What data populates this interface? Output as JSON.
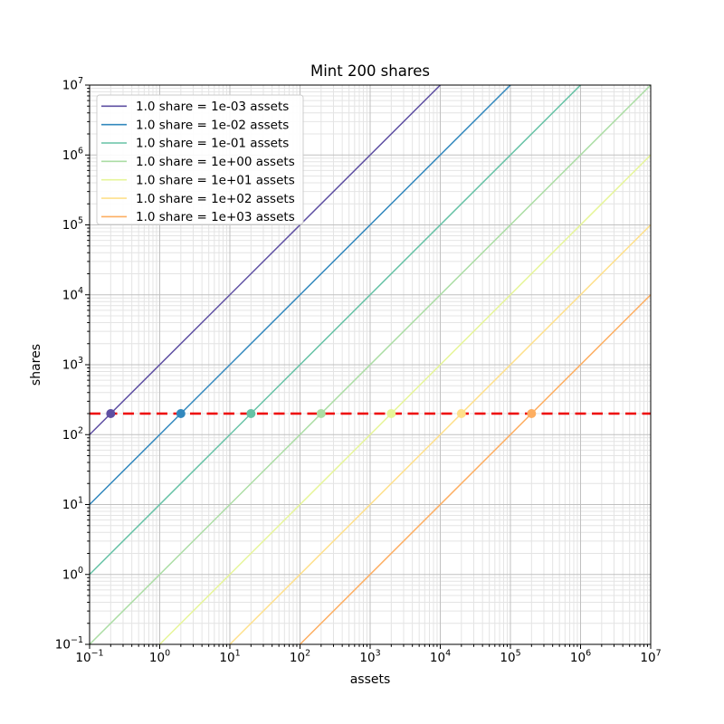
{
  "chart_data": {
    "type": "line",
    "title": "Mint 200 shares",
    "xlabel": "assets",
    "ylabel": "shares",
    "x_scale": "log",
    "y_scale": "log",
    "xlim": [
      0.1,
      10000000
    ],
    "ylim": [
      0.1,
      10000000
    ],
    "x_tick_exponents": [
      -1,
      0,
      1,
      2,
      3,
      4,
      5,
      6,
      7
    ],
    "y_tick_exponents": [
      -1,
      0,
      1,
      2,
      3,
      4,
      5,
      6,
      7
    ],
    "grid": {
      "show_major": true,
      "show_minor": true,
      "major_color": "#c0c0c0",
      "minor_color": "#e4e4e4"
    },
    "series": [
      {
        "label": "1.0 share = 1e-03 assets",
        "color": "#5e4fa2",
        "assets_per_share": 0.001,
        "marker": {
          "x": 0.2,
          "y": 200
        }
      },
      {
        "label": "1.0 share = 1e-02 assets",
        "color": "#3288bd",
        "assets_per_share": 0.01,
        "marker": {
          "x": 2,
          "y": 200
        }
      },
      {
        "label": "1.0 share = 1e-01 assets",
        "color": "#66c2a5",
        "assets_per_share": 0.1,
        "marker": {
          "x": 20,
          "y": 200
        }
      },
      {
        "label": "1.0 share = 1e+00 assets",
        "color": "#abdda4",
        "assets_per_share": 1,
        "marker": {
          "x": 200,
          "y": 200
        }
      },
      {
        "label": "1.0 share = 1e+01 assets",
        "color": "#e6f598",
        "assets_per_share": 10,
        "marker": {
          "x": 2000,
          "y": 200
        }
      },
      {
        "label": "1.0 share = 1e+02 assets",
        "color": "#fee08b",
        "assets_per_share": 100,
        "marker": {
          "x": 20000,
          "y": 200
        }
      },
      {
        "label": "1.0 share = 1e+03 assets",
        "color": "#fdae61",
        "assets_per_share": 1000,
        "marker": {
          "x": 200000,
          "y": 200
        }
      }
    ],
    "reference_line": {
      "y": 200,
      "color": "#ee0000",
      "style": "dashed"
    },
    "legend": {
      "position": "upper-left"
    }
  },
  "colors": {
    "background": "#ffffff",
    "spine": "#000000",
    "text": "#000000",
    "legend_border": "#cccccc",
    "legend_background": "#ffffff"
  }
}
